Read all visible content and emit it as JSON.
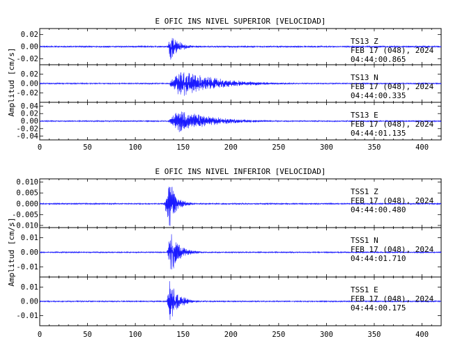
{
  "chart_data": [
    {
      "type": "line",
      "title": "E OFIC INS NIVEL SUPERIOR [VELOCIDAD]",
      "ylabel": "Amplitud [cm/s]",
      "xlim": [
        0,
        420
      ],
      "xticks": [
        0,
        50,
        100,
        150,
        200,
        250,
        300,
        350,
        400
      ],
      "xtick_labels": [
        "0",
        "50",
        "100",
        "150",
        "200",
        "250",
        "300",
        "350",
        "400"
      ],
      "panels": [
        {
          "ylim": [
            -0.03,
            0.03
          ],
          "yticks": [
            -0.02,
            0.0,
            0.02
          ],
          "ytick_labels": [
            "-0.02",
            "0.00",
            "0.02"
          ],
          "info": [
            "TS13   Z",
            "FEB 17 (048), 2024",
            "04:44:00.865"
          ],
          "envelope": {
            "onset": 134,
            "peak_time": 137,
            "peak": 0.022,
            "noise": 0.0012,
            "decay": 9,
            "coda_end": 260
          }
        },
        {
          "ylim": [
            -0.04,
            0.04
          ],
          "yticks": [
            -0.02,
            0.0,
            0.02
          ],
          "ytick_labels": [
            "-0.02",
            "0.00",
            "0.02"
          ],
          "info": [
            "TS13   N",
            "FEB 17 (048), 2024",
            "04:44:00.335"
          ],
          "envelope": {
            "onset": 134,
            "peak_time": 148,
            "peak": 0.028,
            "noise": 0.0012,
            "decay": 38,
            "coda_end": 320
          }
        },
        {
          "ylim": [
            -0.05,
            0.05
          ],
          "yticks": [
            -0.04,
            -0.02,
            0.0,
            0.02,
            0.04
          ],
          "ytick_labels": [
            "-0.04",
            "-0.02",
            "0.00",
            "0.02",
            "0.04"
          ],
          "info": [
            "TS13   E",
            "FEB 17 (048), 2024",
            "04:44:01.135"
          ],
          "envelope": {
            "onset": 134,
            "peak_time": 146,
            "peak": 0.03,
            "noise": 0.0015,
            "decay": 34,
            "coda_end": 320
          }
        }
      ]
    },
    {
      "type": "line",
      "title": "E OFIC INS NIVEL INFERIOR [VELOCIDAD]",
      "ylabel": "Amplitud [cm/s]",
      "xlim": [
        0,
        420
      ],
      "xticks": [
        0,
        50,
        100,
        150,
        200,
        250,
        300,
        350,
        400
      ],
      "xtick_labels": [
        "0",
        "50",
        "100",
        "150",
        "200",
        "250",
        "300",
        "350",
        "400"
      ],
      "panels": [
        {
          "ylim": [
            -0.011,
            0.0115
          ],
          "yticks": [
            -0.01,
            -0.005,
            0.0,
            0.005,
            0.01
          ],
          "ytick_labels": [
            "-0.010",
            "-0.005",
            "0.000",
            "0.005",
            "0.010"
          ],
          "info": [
            "TSS1   Z",
            "FEB 17 (048), 2024",
            "04:44:00.480"
          ],
          "envelope": {
            "onset": 130,
            "peak_time": 136,
            "peak": 0.0105,
            "noise": 0.0003,
            "decay": 8,
            "coda_end": 300
          }
        },
        {
          "ylim": [
            -0.017,
            0.017
          ],
          "yticks": [
            -0.01,
            0.0,
            0.01
          ],
          "ytick_labels": [
            "-0.01",
            "0.00",
            "0.01"
          ],
          "info": [
            "TSS1   N",
            "FEB 17 (048), 2024",
            "04:44:01.710"
          ],
          "envelope": {
            "onset": 133,
            "peak_time": 137,
            "peak": 0.014,
            "noise": 0.0004,
            "decay": 10,
            "coda_end": 300
          }
        },
        {
          "ylim": [
            -0.017,
            0.017
          ],
          "yticks": [
            -0.01,
            0.0,
            0.01
          ],
          "ytick_labels": [
            "-0.01",
            "0.00",
            "0.01"
          ],
          "info": [
            "TSS1   E",
            "FEB 17 (048), 2024",
            "04:44:00.175"
          ],
          "envelope": {
            "onset": 133,
            "peak_time": 136,
            "peak": 0.015,
            "noise": 0.0004,
            "decay": 9,
            "coda_end": 300
          }
        }
      ]
    }
  ],
  "colors": {
    "trace": "#1a1aff",
    "axes": "#000000",
    "background": "#ffffff"
  }
}
